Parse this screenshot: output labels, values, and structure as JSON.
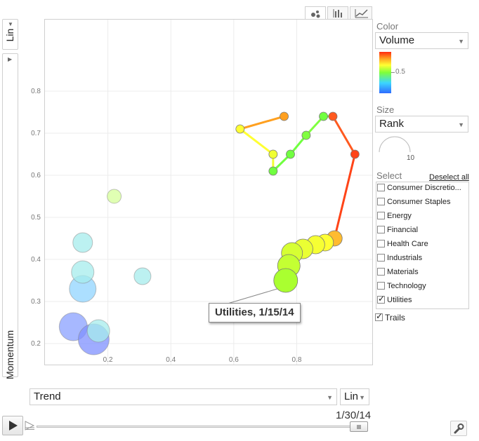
{
  "chart_data": {
    "type": "scatter",
    "title": "",
    "xlabel": "Trend",
    "ylabel": "Momentum",
    "xlim": [
      0.0,
      1.04
    ],
    "ylim": [
      0.15,
      0.97
    ],
    "x_ticks": [
      0.2,
      0.4,
      0.6,
      0.8
    ],
    "y_ticks": [
      0.2,
      0.3,
      0.4,
      0.5,
      0.6,
      0.7,
      0.8
    ],
    "x_tick_labels": [
      "0.2",
      "0.4",
      "0.6",
      "0.8"
    ],
    "y_tick_labels": [
      "0.2",
      "0.3",
      "0.4",
      "0.5",
      "0.6",
      "0.7",
      "0.8"
    ],
    "grid": true,
    "color_scale": {
      "label": "Volume",
      "mid_label": "0.5",
      "stops": [
        "#2f6bff",
        "#3cd6ff",
        "#7fff3a",
        "#ffff33",
        "#ffa020",
        "#ff2a10"
      ]
    },
    "size_scale": {
      "label": "Rank",
      "value_label": "10"
    },
    "bubbles": [
      {
        "x": 0.09,
        "y": 0.24,
        "size": 20,
        "color": "#8aa0ff"
      },
      {
        "x": 0.155,
        "y": 0.21,
        "size": 22,
        "color": "#7f90ff"
      },
      {
        "x": 0.17,
        "y": 0.23,
        "size": 16,
        "color": "#a6ecec"
      },
      {
        "x": 0.12,
        "y": 0.33,
        "size": 19,
        "color": "#90d4ff"
      },
      {
        "x": 0.12,
        "y": 0.37,
        "size": 16,
        "color": "#a6ecec"
      },
      {
        "x": 0.12,
        "y": 0.44,
        "size": 14,
        "color": "#a6ecec"
      },
      {
        "x": 0.31,
        "y": 0.36,
        "size": 12,
        "color": "#a6ecec"
      },
      {
        "x": 0.22,
        "y": 0.55,
        "size": 10,
        "color": "#d6ff9a"
      }
    ],
    "trail": {
      "name": "Utilities",
      "points": [
        {
          "x": 0.76,
          "y": 0.74,
          "size": 6,
          "color": "#ffa020"
        },
        {
          "x": 0.62,
          "y": 0.71,
          "size": 6,
          "color": "#ffff33"
        },
        {
          "x": 0.725,
          "y": 0.65,
          "size": 6,
          "color": "#f0ff33"
        },
        {
          "x": 0.725,
          "y": 0.61,
          "size": 6,
          "color": "#70ff40"
        },
        {
          "x": 0.78,
          "y": 0.65,
          "size": 6,
          "color": "#70ff40"
        },
        {
          "x": 0.83,
          "y": 0.695,
          "size": 6,
          "color": "#80ff40"
        },
        {
          "x": 0.885,
          "y": 0.74,
          "size": 6,
          "color": "#70ff40"
        },
        {
          "x": 0.915,
          "y": 0.74,
          "size": 6,
          "color": "#ff5a20"
        },
        {
          "x": 0.985,
          "y": 0.65,
          "size": 6,
          "color": "#ff4418"
        },
        {
          "x": 0.92,
          "y": 0.45,
          "size": 11,
          "color": "#ffbb30"
        },
        {
          "x": 0.89,
          "y": 0.44,
          "size": 12,
          "color": "#ffff33"
        },
        {
          "x": 0.86,
          "y": 0.435,
          "size": 13,
          "color": "#f6ff33"
        },
        {
          "x": 0.82,
          "y": 0.425,
          "size": 14,
          "color": "#eaff33"
        },
        {
          "x": 0.785,
          "y": 0.415,
          "size": 15,
          "color": "#d6ff33"
        },
        {
          "x": 0.775,
          "y": 0.385,
          "size": 16,
          "color": "#c4ff33"
        },
        {
          "x": 0.765,
          "y": 0.35,
          "size": 17,
          "color": "#aaff30"
        }
      ]
    }
  },
  "ui": {
    "y_scale": "Lin",
    "x_scale": "Lin",
    "color_label": "Color",
    "color_select": "Volume",
    "size_label": "Size",
    "size_select": "Rank",
    "size_value": "10",
    "colorbar_mid": "0.5",
    "select_label": "Select",
    "deselect_all": "Deselect all",
    "trails_label": "Trails",
    "trails_checked": true,
    "date_label": "1/30/14",
    "tooltip": "Utilities, 1/15/14",
    "x_axis_select": "Trend",
    "y_axis_label": "Momentum",
    "slider_progress": 1.0
  },
  "sectors": [
    {
      "label": "Consumer Discretio...",
      "checked": false
    },
    {
      "label": "Consumer Staples",
      "checked": false
    },
    {
      "label": "Energy",
      "checked": false
    },
    {
      "label": "Financial",
      "checked": false
    },
    {
      "label": "Health Care",
      "checked": false
    },
    {
      "label": "Industrials",
      "checked": false
    },
    {
      "label": "Materials",
      "checked": false
    },
    {
      "label": "Technology",
      "checked": false
    },
    {
      "label": "Utilities",
      "checked": true
    }
  ]
}
